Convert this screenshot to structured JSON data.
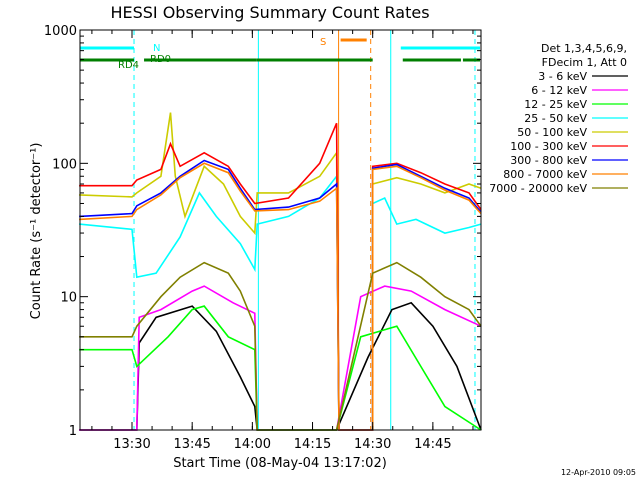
{
  "chart_data": {
    "type": "line",
    "title": "HESSI Observing Summary Count Rates",
    "xlabel": "Start Time (08-May-04 13:17:02)",
    "ylabel": "Count Rate (s⁻¹ detector⁻¹)",
    "yscale": "log",
    "ylim": [
      1,
      1000
    ],
    "xlim": [
      "13:17:02",
      "14:57:00"
    ],
    "y_ticks": [
      "1",
      "10",
      "100",
      "1000"
    ],
    "x_ticks": [
      "13:30",
      "13:45",
      "14:00",
      "14:15",
      "14:30",
      "14:45"
    ],
    "legend": {
      "position": "right",
      "header": [
        "Det 1,3,4,5,6,9,",
        "FDecim 1, Att 0"
      ],
      "entries": [
        {
          "label": "3 - 6 keV",
          "color": "#000000"
        },
        {
          "label": "6 - 12 keV",
          "color": "#ff00ff"
        },
        {
          "label": "12 - 25 keV",
          "color": "#00ff00"
        },
        {
          "label": "25 - 50 keV",
          "color": "#00ffff"
        },
        {
          "label": "50 - 100 keV",
          "color": "#cccc00"
        },
        {
          "label": "100 - 300 keV",
          "color": "#ff0000"
        },
        {
          "label": "300 - 800 keV",
          "color": "#0000ff"
        },
        {
          "label": "800 - 7000 keV",
          "color": "#ff8000"
        },
        {
          "label": "7000 - 20000 keV",
          "color": "#808000"
        }
      ]
    },
    "flags": [
      {
        "label": "N",
        "color": "#00ffff",
        "spans": [
          [
            "13:17",
            "13:30.5"
          ],
          [
            "14:37",
            "14:58"
          ]
        ]
      },
      {
        "label": "RD0",
        "color": "#007f00",
        "spans": [
          [
            "13:17",
            "13:30.5"
          ],
          [
            "13:33",
            "14:01"
          ],
          [
            "14:01",
            "14:30"
          ],
          [
            "14:37.5",
            "14:52"
          ],
          [
            "14:52.5",
            "14:58"
          ]
        ]
      },
      {
        "label": "RD4",
        "color": "#007f00",
        "spans": []
      },
      {
        "label": "S",
        "color": "#ff8000",
        "spans": [
          [
            "14:22",
            "14:28.5"
          ]
        ]
      }
    ],
    "vlines": [
      {
        "time": "13:30.5",
        "color": "#00ffff",
        "dash": true
      },
      {
        "time": "14:01.5",
        "color": "#00ffff",
        "dash": false
      },
      {
        "time": "14:21.5",
        "color": "#ff8000",
        "dash": false
      },
      {
        "time": "14:29.5",
        "color": "#ff8000",
        "dash": true
      },
      {
        "time": "14:34.5",
        "color": "#00ffff",
        "dash": false
      },
      {
        "time": "14:55.5",
        "color": "#00ffff",
        "dash": true
      }
    ],
    "gaps": [
      [
        "14:21.5",
        "14:29.5"
      ]
    ],
    "series": [
      {
        "name": "3 - 6 keV",
        "color": "#000000",
        "points": [
          [
            13.28,
            1
          ],
          [
            13.52,
            1
          ],
          [
            13.53,
            4.5
          ],
          [
            13.6,
            7
          ],
          [
            13.75,
            8.5
          ],
          [
            13.85,
            5.5
          ],
          [
            13.95,
            2.5
          ],
          [
            14.01,
            1.5
          ],
          [
            14.02,
            1
          ],
          [
            14.35,
            1
          ],
          [
            14.48,
            3.5
          ],
          [
            14.58,
            8
          ],
          [
            14.66,
            9
          ],
          [
            14.75,
            6
          ],
          [
            14.85,
            3
          ],
          [
            14.95,
            1
          ]
        ]
      },
      {
        "name": "6 - 12 keV",
        "color": "#ff00ff",
        "points": [
          [
            13.28,
            1
          ],
          [
            13.52,
            1
          ],
          [
            13.53,
            7
          ],
          [
            13.62,
            8
          ],
          [
            13.75,
            11
          ],
          [
            13.8,
            12
          ],
          [
            13.92,
            9
          ],
          [
            14.01,
            7.5
          ],
          [
            14.02,
            1
          ],
          [
            14.35,
            1
          ],
          [
            14.45,
            10
          ],
          [
            14.55,
            12
          ],
          [
            14.66,
            11
          ],
          [
            14.8,
            8
          ],
          [
            14.95,
            6
          ]
        ]
      },
      {
        "name": "12 - 25 keV",
        "color": "#00ff00",
        "points": [
          [
            13.28,
            4
          ],
          [
            13.5,
            4
          ],
          [
            13.52,
            3
          ],
          [
            13.65,
            5
          ],
          [
            13.75,
            8
          ],
          [
            13.8,
            8.5
          ],
          [
            13.9,
            5
          ],
          [
            14.01,
            4
          ],
          [
            14.02,
            1
          ],
          [
            14.35,
            1
          ],
          [
            14.45,
            5
          ],
          [
            14.6,
            6
          ],
          [
            14.7,
            3
          ],
          [
            14.8,
            1.5
          ],
          [
            14.95,
            1
          ]
        ]
      },
      {
        "name": "25 - 50 keV",
        "color": "#00ffff",
        "points": [
          [
            13.28,
            35
          ],
          [
            13.5,
            32
          ],
          [
            13.52,
            14
          ],
          [
            13.6,
            15
          ],
          [
            13.7,
            28
          ],
          [
            13.78,
            60
          ],
          [
            13.85,
            40
          ],
          [
            13.95,
            25
          ],
          [
            14.01,
            16
          ],
          [
            14.02,
            35
          ],
          [
            14.15,
            40
          ],
          [
            14.28,
            55
          ],
          [
            14.35,
            80
          ],
          [
            14.36,
            1
          ],
          [
            14.5,
            1
          ],
          [
            14.5,
            50
          ],
          [
            14.55,
            55
          ],
          [
            14.6,
            35
          ],
          [
            14.68,
            38
          ],
          [
            14.8,
            30
          ],
          [
            14.9,
            33
          ],
          [
            14.95,
            35
          ]
        ]
      },
      {
        "name": "50 - 100 keV",
        "color": "#cccc00",
        "points": [
          [
            13.28,
            58
          ],
          [
            13.5,
            56
          ],
          [
            13.52,
            60
          ],
          [
            13.62,
            80
          ],
          [
            13.66,
            240
          ],
          [
            13.68,
            80
          ],
          [
            13.72,
            40
          ],
          [
            13.8,
            95
          ],
          [
            13.88,
            70
          ],
          [
            13.95,
            40
          ],
          [
            14.01,
            30
          ],
          [
            14.02,
            60
          ],
          [
            14.15,
            60
          ],
          [
            14.28,
            80
          ],
          [
            14.35,
            120
          ],
          [
            14.36,
            1
          ],
          [
            14.5,
            1
          ],
          [
            14.5,
            70
          ],
          [
            14.6,
            78
          ],
          [
            14.7,
            70
          ],
          [
            14.8,
            60
          ],
          [
            14.9,
            70
          ],
          [
            14.95,
            65
          ]
        ]
      },
      {
        "name": "100 - 300 keV",
        "color": "#ff0000",
        "points": [
          [
            13.28,
            68
          ],
          [
            13.5,
            68
          ],
          [
            13.52,
            75
          ],
          [
            13.62,
            90
          ],
          [
            13.66,
            140
          ],
          [
            13.7,
            95
          ],
          [
            13.8,
            120
          ],
          [
            13.9,
            95
          ],
          [
            13.95,
            70
          ],
          [
            14.01,
            50
          ],
          [
            14.15,
            55
          ],
          [
            14.28,
            100
          ],
          [
            14.35,
            200
          ],
          [
            14.36,
            1
          ],
          [
            14.5,
            1
          ],
          [
            14.5,
            95
          ],
          [
            14.6,
            100
          ],
          [
            14.7,
            85
          ],
          [
            14.8,
            70
          ],
          [
            14.9,
            60
          ],
          [
            14.95,
            45
          ]
        ]
      },
      {
        "name": "300 - 800 keV",
        "color": "#0000ff",
        "points": [
          [
            13.28,
            40
          ],
          [
            13.5,
            42
          ],
          [
            13.52,
            48
          ],
          [
            13.62,
            60
          ],
          [
            13.7,
            80
          ],
          [
            13.8,
            105
          ],
          [
            13.9,
            90
          ],
          [
            13.95,
            65
          ],
          [
            14.01,
            45
          ],
          [
            14.15,
            47
          ],
          [
            14.28,
            55
          ],
          [
            14.35,
            70
          ],
          [
            14.36,
            1
          ],
          [
            14.5,
            1
          ],
          [
            14.5,
            92
          ],
          [
            14.6,
            98
          ],
          [
            14.7,
            80
          ],
          [
            14.8,
            65
          ],
          [
            14.9,
            55
          ],
          [
            14.95,
            43
          ]
        ]
      },
      {
        "name": "800 - 7000 keV",
        "color": "#ff8000",
        "points": [
          [
            13.28,
            38
          ],
          [
            13.5,
            40
          ],
          [
            13.52,
            45
          ],
          [
            13.62,
            58
          ],
          [
            13.7,
            78
          ],
          [
            13.8,
            100
          ],
          [
            13.9,
            85
          ],
          [
            13.95,
            62
          ],
          [
            14.01,
            44
          ],
          [
            14.15,
            45
          ],
          [
            14.28,
            52
          ],
          [
            14.35,
            65
          ],
          [
            14.36,
            1
          ],
          [
            14.5,
            1
          ],
          [
            14.5,
            90
          ],
          [
            14.6,
            95
          ],
          [
            14.7,
            78
          ],
          [
            14.8,
            63
          ],
          [
            14.9,
            53
          ],
          [
            14.95,
            42
          ]
        ]
      },
      {
        "name": "7000 - 20000 keV",
        "color": "#808000",
        "points": [
          [
            13.28,
            5
          ],
          [
            13.5,
            5
          ],
          [
            13.52,
            6
          ],
          [
            13.62,
            10
          ],
          [
            13.7,
            14
          ],
          [
            13.8,
            18
          ],
          [
            13.9,
            15
          ],
          [
            13.95,
            11
          ],
          [
            14.01,
            6
          ],
          [
            14.02,
            1
          ],
          [
            14.35,
            1
          ],
          [
            14.5,
            15
          ],
          [
            14.6,
            18
          ],
          [
            14.7,
            14
          ],
          [
            14.8,
            10
          ],
          [
            14.9,
            8
          ],
          [
            14.95,
            6
          ]
        ]
      }
    ]
  },
  "footer": {
    "timestamp": "12-Apr-2010 09:05"
  }
}
